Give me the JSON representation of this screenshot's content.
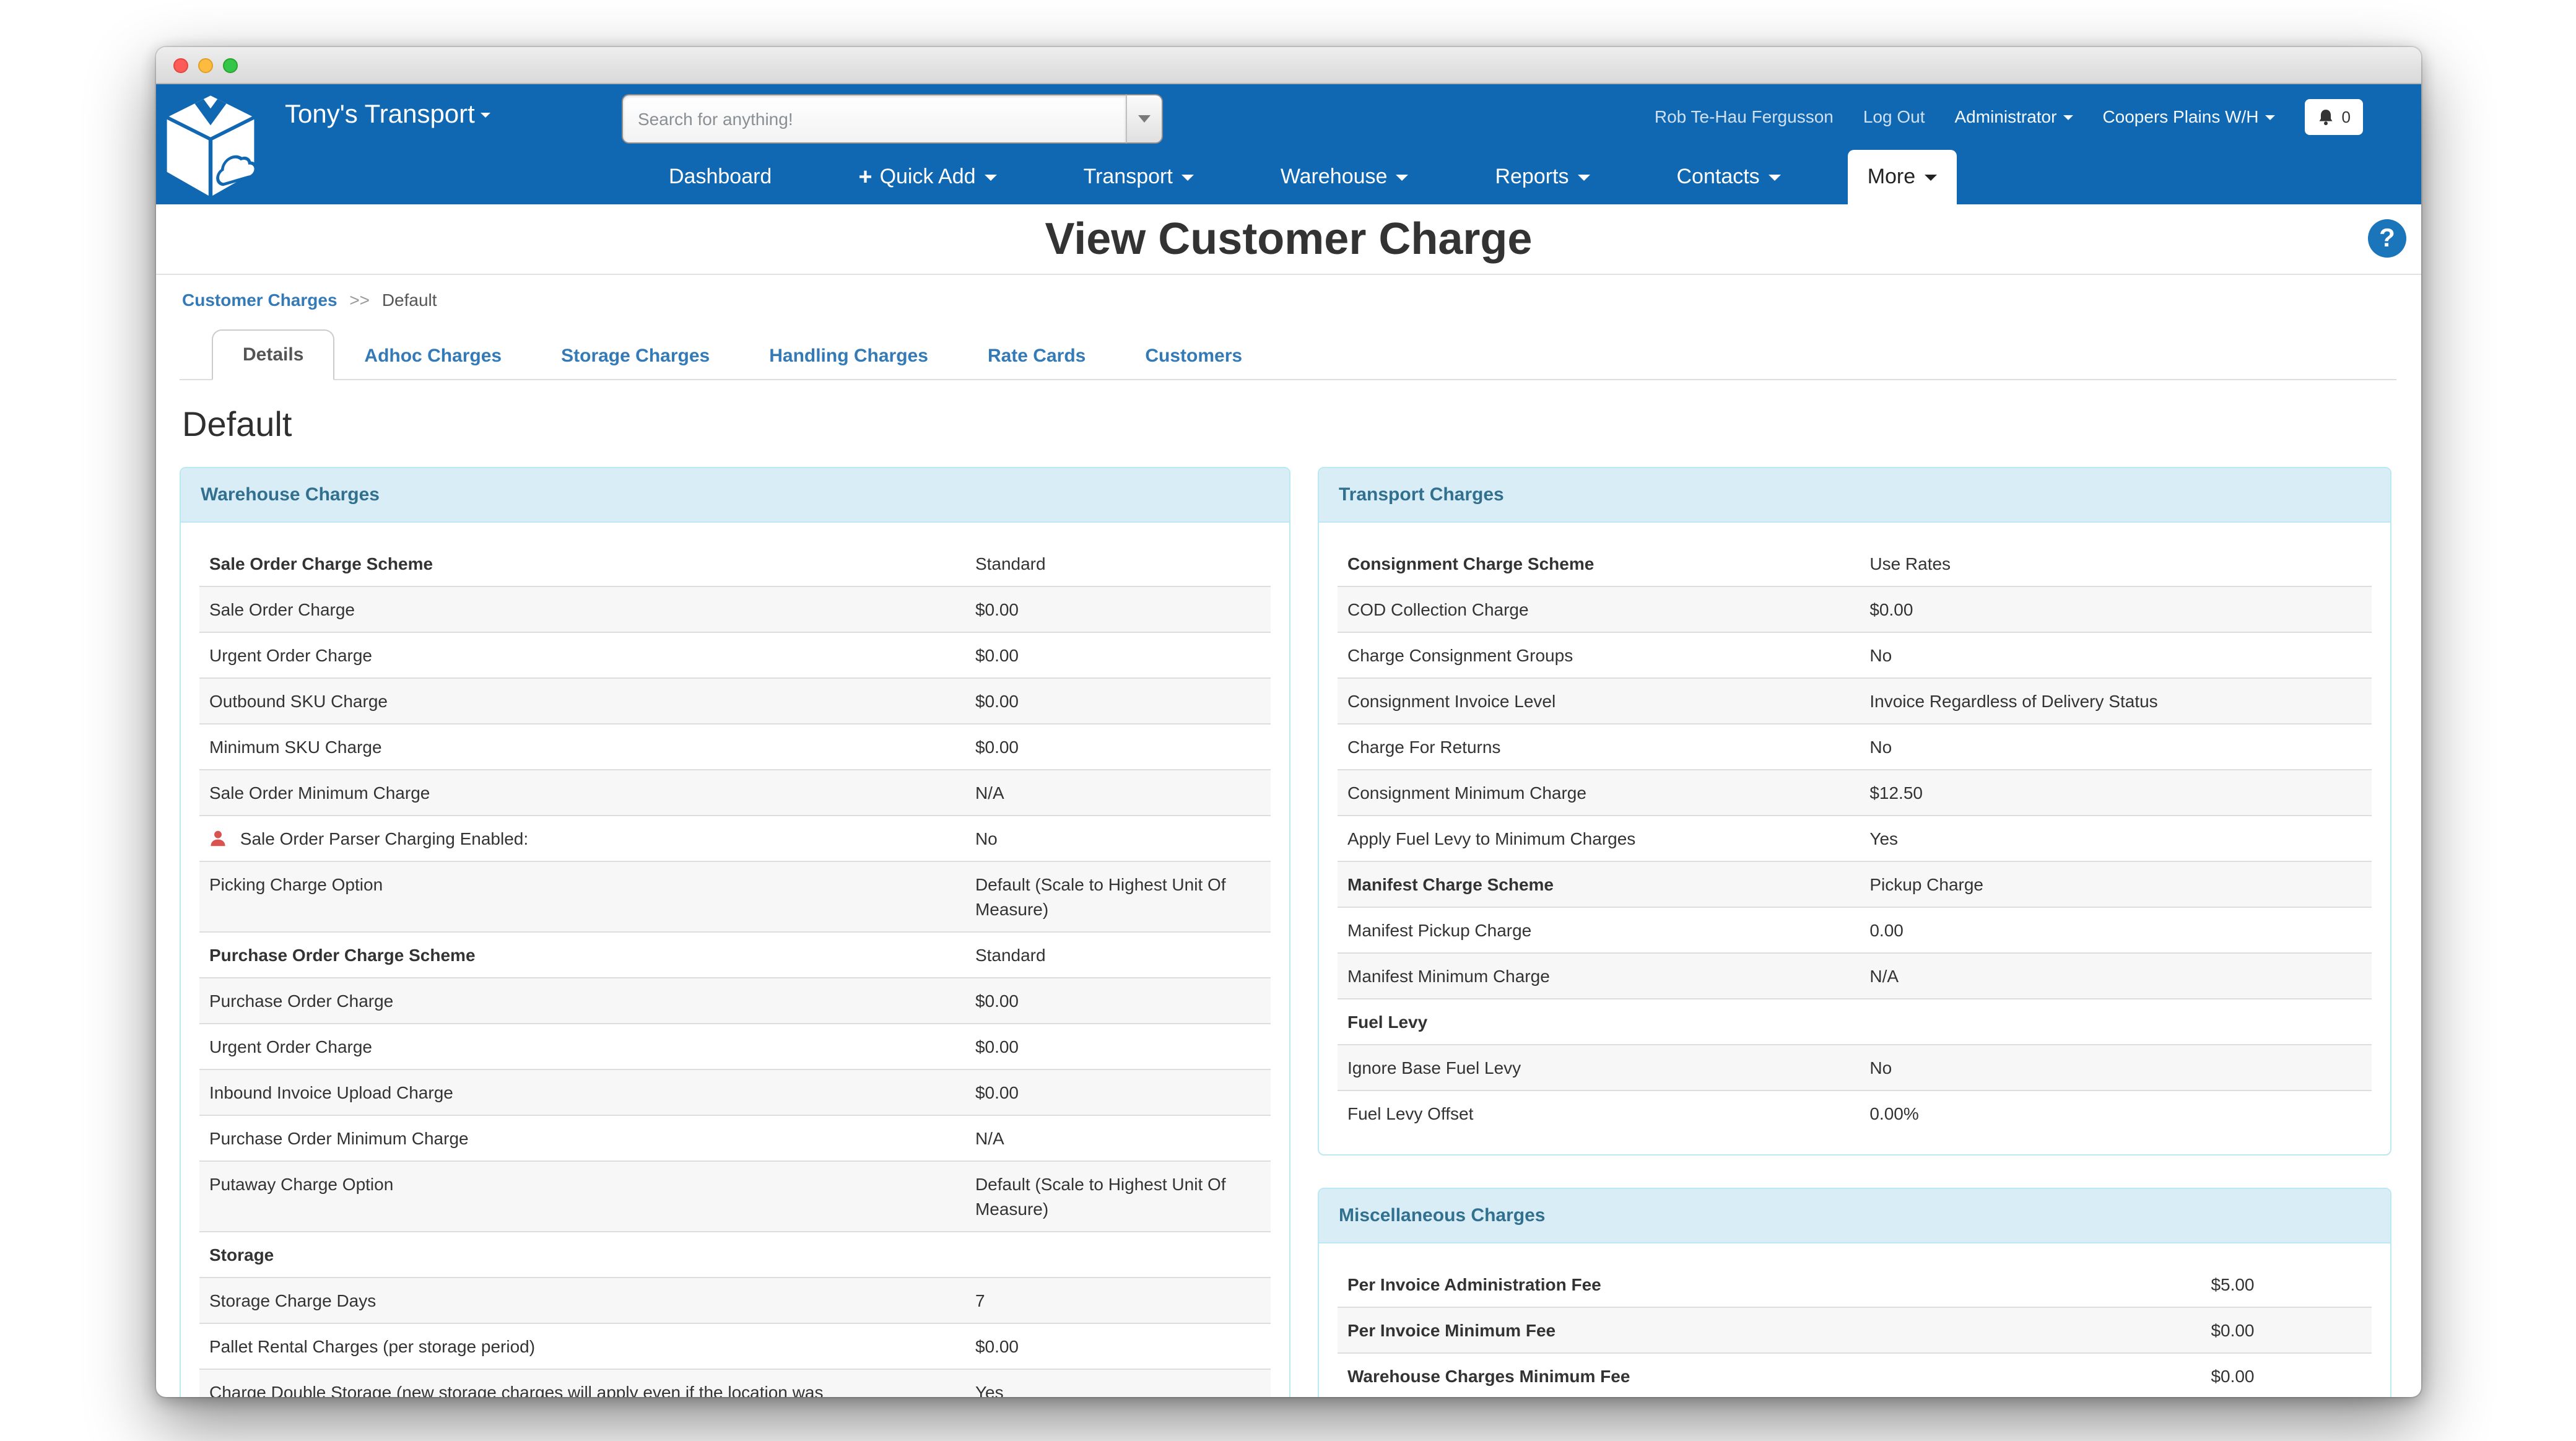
{
  "navbar": {
    "brand": "Tony's Transport",
    "search_placeholder": "Search for anything!",
    "user_name": "Rob Te-Hau Fergusson",
    "logout_label": "Log Out",
    "role_label": "Administrator",
    "warehouse_label": "Coopers Plains W/H",
    "notification_count": "0",
    "nav_items": [
      {
        "label": "Dashboard",
        "caret": false,
        "plus": false,
        "active": false
      },
      {
        "label": "Quick Add",
        "caret": true,
        "plus": true,
        "active": false
      },
      {
        "label": "Transport",
        "caret": true,
        "plus": false,
        "active": false
      },
      {
        "label": "Warehouse",
        "caret": true,
        "plus": false,
        "active": false
      },
      {
        "label": "Reports",
        "caret": true,
        "plus": false,
        "active": false
      },
      {
        "label": "Contacts",
        "caret": true,
        "plus": false,
        "active": false
      },
      {
        "label": "More",
        "caret": true,
        "plus": false,
        "active": true
      }
    ]
  },
  "page": {
    "title": "View Customer Charge",
    "help_label": "?",
    "breadcrumb": {
      "link": "Customer Charges",
      "separator": ">>",
      "current": "Default"
    },
    "tabs": [
      {
        "label": "Details",
        "active": true
      },
      {
        "label": "Adhoc Charges",
        "active": false
      },
      {
        "label": "Storage Charges",
        "active": false
      },
      {
        "label": "Handling Charges",
        "active": false
      },
      {
        "label": "Rate Cards",
        "active": false
      },
      {
        "label": "Customers",
        "active": false
      }
    ],
    "heading": "Default"
  },
  "panels": {
    "warehouse": {
      "title": "Warehouse Charges",
      "rows": [
        {
          "label": "Sale Order Charge Scheme",
          "value": "Standard",
          "bold": true
        },
        {
          "label": "Sale Order Charge",
          "value": "$0.00"
        },
        {
          "label": "Urgent Order Charge",
          "value": "$0.00"
        },
        {
          "label": "Outbound SKU Charge",
          "value": "$0.00"
        },
        {
          "label": "Minimum SKU Charge",
          "value": "$0.00"
        },
        {
          "label": "Sale Order Minimum Charge",
          "value": "N/A"
        },
        {
          "label": "Sale Order Parser Charging Enabled:",
          "value": "No",
          "icon": "user-icon"
        },
        {
          "label": "Picking Charge Option",
          "value": "Default (Scale to Highest Unit Of Measure)"
        },
        {
          "label": "Purchase Order Charge Scheme",
          "value": "Standard",
          "bold": true
        },
        {
          "label": "Purchase Order Charge",
          "value": "$0.00"
        },
        {
          "label": "Urgent Order Charge",
          "value": "$0.00"
        },
        {
          "label": "Inbound Invoice Upload Charge",
          "value": "$0.00"
        },
        {
          "label": "Purchase Order Minimum Charge",
          "value": "N/A"
        },
        {
          "label": "Putaway Charge Option",
          "value": "Default (Scale to Highest Unit Of Measure)"
        },
        {
          "label": "Storage",
          "value": "",
          "bold": true
        },
        {
          "label": "Storage Charge Days",
          "value": "7"
        },
        {
          "label": "Pallet Rental Charges (per storage period)",
          "value": "$0.00"
        },
        {
          "label": "Charge Double Storage (new storage charges will apply even if the location was",
          "value": "Yes"
        }
      ]
    },
    "transport": {
      "title": "Transport Charges",
      "rows": [
        {
          "label": "Consignment Charge Scheme",
          "value": "Use Rates",
          "bold": true
        },
        {
          "label": "COD Collection Charge",
          "value": "$0.00"
        },
        {
          "label": "Charge Consignment Groups",
          "value": "No"
        },
        {
          "label": "Consignment Invoice Level",
          "value": "Invoice Regardless of Delivery Status"
        },
        {
          "label": "Charge For Returns",
          "value": "No"
        },
        {
          "label": "Consignment Minimum Charge",
          "value": "$12.50"
        },
        {
          "label": "Apply Fuel Levy to Minimum Charges",
          "value": "Yes"
        },
        {
          "label": "Manifest Charge Scheme",
          "value": "Pickup Charge",
          "bold": true
        },
        {
          "label": "Manifest Pickup Charge",
          "value": "0.00"
        },
        {
          "label": "Manifest Minimum Charge",
          "value": "N/A"
        },
        {
          "label": "Fuel Levy",
          "value": "",
          "bold": true
        },
        {
          "label": "Ignore Base Fuel Levy",
          "value": "No"
        },
        {
          "label": "Fuel Levy Offset",
          "value": "0.00%"
        }
      ]
    },
    "misc": {
      "title": "Miscellaneous Charges",
      "rows": [
        {
          "label": "Per Invoice Administration Fee",
          "value": "$5.00",
          "bold": true
        },
        {
          "label": "Per Invoice Minimum Fee",
          "value": "$0.00",
          "bold": true
        },
        {
          "label": "Warehouse Charges Minimum Fee",
          "value": "$0.00",
          "bold": true
        }
      ]
    }
  },
  "colors": {
    "navbar_blue": "#1067B2",
    "link_blue": "#337ab7",
    "panel_border": "#bce8f1",
    "panel_header_bg": "#d9edf7",
    "panel_header_text": "#31708f",
    "row_stripe": "#f7f7f7",
    "row_border": "#dddddd",
    "danger_red": "#d9534f",
    "help_blue": "#1b75bb",
    "title_text": "#333333"
  }
}
